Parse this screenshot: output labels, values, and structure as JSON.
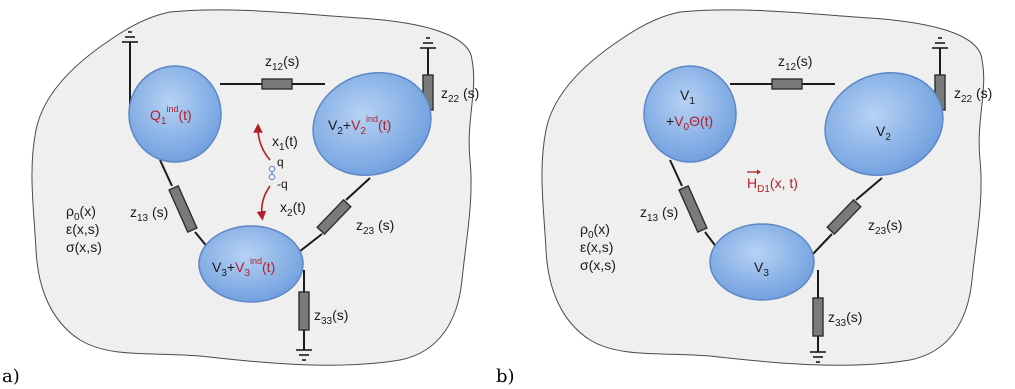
{
  "panel_a": {
    "letter": "a)",
    "conductors": {
      "c1": {
        "main": "Q",
        "sub": "1",
        "sup": "ind",
        "tail": "(t)"
      },
      "c2": {
        "pre": "V",
        "pre_sub": "2",
        "plus": "+",
        "main": "V",
        "sub": "2",
        "sup": "ind",
        "tail": "(t)"
      },
      "c3": {
        "pre": "V",
        "pre_sub": "3",
        "plus": "+",
        "main": "V",
        "sub": "3",
        "sup": "ind",
        "tail": "(t)"
      }
    },
    "impedances": {
      "z12": {
        "main": "z",
        "sub": "12",
        "tail": "(s)"
      },
      "z22": {
        "main": "z",
        "sub": "22",
        "tail": " (s)"
      },
      "z13": {
        "main": "z",
        "sub": "13",
        "tail": " (s)"
      },
      "z23": {
        "main": "z",
        "sub": "23",
        "tail": " (s)"
      },
      "z33": {
        "main": "z",
        "sub": "33",
        "tail": "(s)"
      }
    },
    "charge": {
      "x1": {
        "main": "x",
        "sub": "1",
        "tail": "(t)"
      },
      "x2": {
        "main": "x",
        "sub": "2",
        "tail": "(t)"
      },
      "plus_q": "q",
      "minus_q": "-q"
    },
    "media": {
      "rho": {
        "main": "ρ",
        "sub": "0",
        "tail": "(x)"
      },
      "eps": "ε(x,s)",
      "sigma": "σ(x,s)"
    }
  },
  "panel_b": {
    "letter": "b)",
    "conductors": {
      "c1": {
        "main": "V",
        "sub": "1",
        "line2": "+",
        "src_main": "V",
        "src_sub": "0",
        "src_tail": "Θ(t)"
      },
      "c2": {
        "main": "V",
        "sub": "2"
      },
      "c3": {
        "main": "V",
        "sub": "3"
      }
    },
    "field": {
      "main": "H",
      "sub": "D1",
      "tail": "(x, t)"
    },
    "impedances": {
      "z12": {
        "main": "z",
        "sub": "12",
        "tail": "(s)"
      },
      "z22": {
        "main": "z",
        "sub": "22",
        "tail": " (s)"
      },
      "z13": {
        "main": "z",
        "sub": "13",
        "tail": " (s)"
      },
      "z23": {
        "main": "z",
        "sub": "23",
        "tail": "(s)"
      },
      "z33": {
        "main": "z",
        "sub": "33",
        "tail": "(s)"
      }
    },
    "media": {
      "rho": {
        "main": "ρ",
        "sub": "0",
        "tail": "(x)"
      },
      "eps": "ε(x,s)",
      "sigma": "σ(x,s)"
    }
  },
  "colors": {
    "conductor_top": "#a9c8f0",
    "conductor_bottom": "#6e9ede",
    "label_red": "#b3202a",
    "region_fill": "#efefef",
    "charge_blue": "#6f8fd0"
  }
}
